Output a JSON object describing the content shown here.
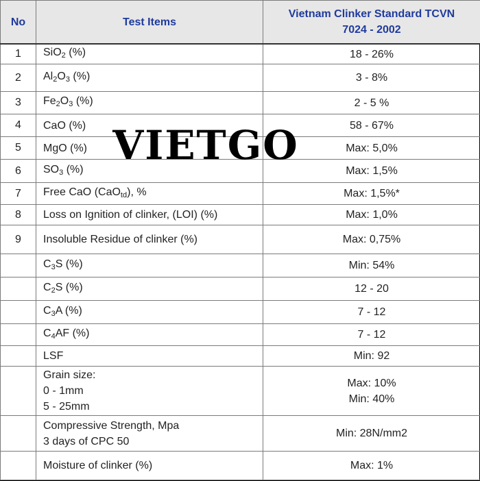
{
  "header": {
    "no": "No",
    "test_items": "Test Items",
    "standard_line1": "Vietnam Clinker Standard TCVN",
    "standard_line2": "7024 - 2002"
  },
  "watermark": "VIETGO",
  "rows": [
    {
      "no": "1",
      "item": "SiO",
      "sub": "2",
      "item_tail": " (%)",
      "std": "18 - 26%"
    },
    {
      "no": "2",
      "item": "Al",
      "sub": "2",
      "item_mid": "O",
      "sub2": "3",
      "item_tail": " (%)",
      "std": "3 - 8%"
    },
    {
      "no": "3",
      "item": "Fe",
      "sub": "2",
      "item_mid": "O",
      "sub2": "3",
      "item_tail": " (%)",
      "std": "2 - 5 %"
    },
    {
      "no": "4",
      "item": "CaO (%)",
      "std": "58 -  67%"
    },
    {
      "no": "5",
      "item": "MgO (%)",
      "std": "Max: 5,0%"
    },
    {
      "no": "6",
      "item": "SO",
      "sub": "3",
      "item_tail": " (%)",
      "std": "Max: 1,5%"
    },
    {
      "no": "7",
      "item": "Free CaO (CaO",
      "sub": "td",
      "item_tail": "),  %",
      "std": "Max: 1,5%*"
    },
    {
      "no": "8",
      "item": "Loss on Ignition of clinker, (LOI)  (%)",
      "std": "Max: 1,0%"
    },
    {
      "no": "9",
      "item": "Insoluble Residue  of clinker (%)",
      "std": "Max: 0,75%"
    },
    {
      "no": "",
      "item": "C",
      "sub": "3",
      "item_tail": "S (%)",
      "std": "Min: 54%"
    },
    {
      "no": "",
      "item": "C",
      "sub": "2",
      "item_tail": "S (%)",
      "std": "12 - 20"
    },
    {
      "no": "",
      "item": "C",
      "sub": "3",
      "item_tail": "A (%)",
      "std": "7 - 12"
    },
    {
      "no": "",
      "item": "C",
      "sub": "4",
      "item_tail": "AF (%)",
      "std": "7 - 12"
    },
    {
      "no": "",
      "item": "LSF",
      "std": "Min: 92"
    },
    {
      "no": "",
      "item_lines": [
        "Grain size:",
        "0 - 1mm",
        "5 - 25mm"
      ],
      "std_lines": [
        "Max: 10%",
        "Min: 40%"
      ]
    },
    {
      "no": "",
      "item_lines": [
        "Compressive Strength, Mpa",
        "3 days of CPC 50"
      ],
      "std": "Min: 28N/mm2"
    },
    {
      "no": "",
      "item": "Moisture of clinker (%)",
      "std": "Max: 1%"
    }
  ]
}
